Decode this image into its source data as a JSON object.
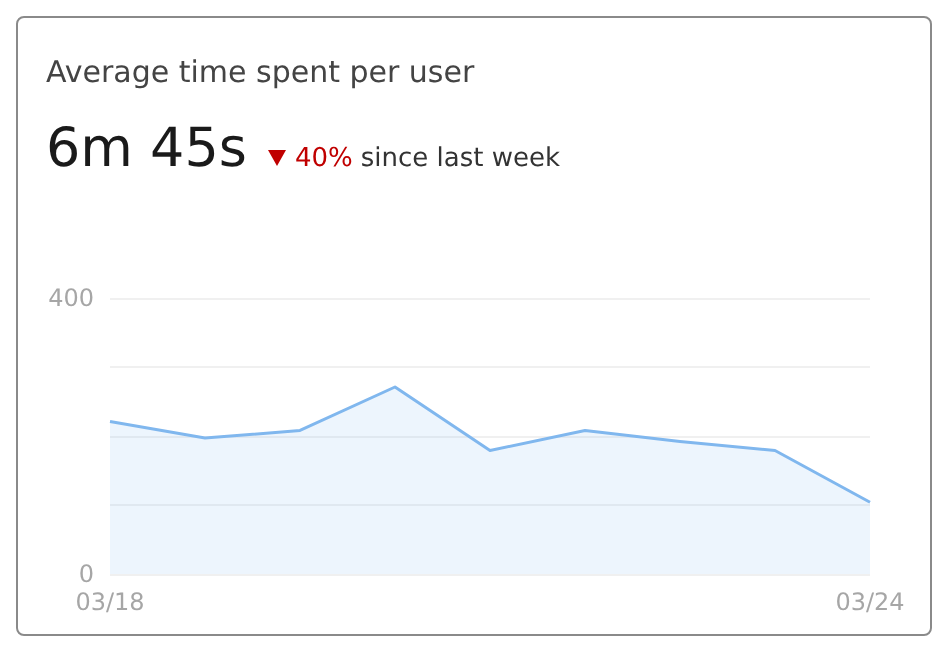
{
  "chart_data": {
    "type": "area",
    "title": "Average time spent per user",
    "subtitle": "6m 45s",
    "annotations": [
      "40%",
      "since last week"
    ],
    "categories": [
      "03/18",
      null,
      null,
      null,
      null,
      null,
      null,
      null,
      "03/24"
    ],
    "series": [
      {
        "color": "#80b7ee",
        "values": [
          221,
          197,
          208,
          271,
          179,
          208,
          192,
          179,
          104
        ]
      }
    ],
    "ylim": [
      0,
      400
    ],
    "yticks": [
      0,
      {
        "value": 100,
        "label": null
      },
      {
        "value": 200,
        "label": null
      },
      {
        "value": 300,
        "label": null
      },
      400
    ],
    "grid": true,
    "marker": "none"
  }
}
